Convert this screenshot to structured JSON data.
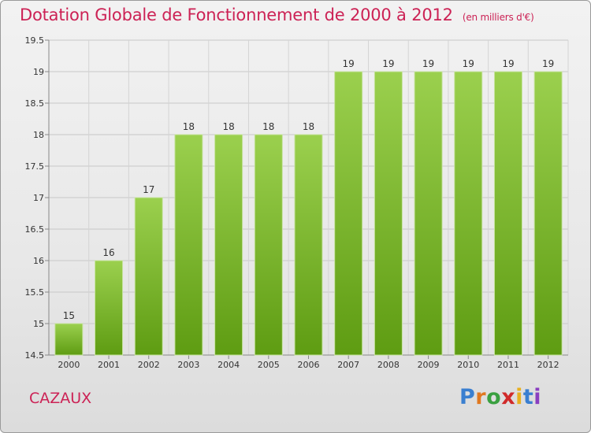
{
  "title": "Dotation Globale de Fonctionnement de 2000 à 2012",
  "subtitle": "(en milliers d'€)",
  "commune": "CAZAUX",
  "logo": "Proxiti",
  "colors": {
    "bar_top": "#9bd04e",
    "bar_bottom": "#5e9c12",
    "title": "#cc2255"
  },
  "chart_data": {
    "type": "bar",
    "title": "Dotation Globale de Fonctionnement de 2000 à 2012",
    "subtitle": "(en milliers d'€)",
    "categories": [
      "2000",
      "2001",
      "2002",
      "2003",
      "2004",
      "2005",
      "2006",
      "2007",
      "2008",
      "2009",
      "2010",
      "2011",
      "2012"
    ],
    "values": [
      15,
      16,
      17,
      18,
      18,
      18,
      18,
      19,
      19,
      19,
      19,
      19,
      19
    ],
    "data_labels": [
      "15",
      "16",
      "17",
      "18",
      "18",
      "18",
      "18",
      "19",
      "19",
      "19",
      "19",
      "19",
      "19"
    ],
    "ylim": [
      14.5,
      19.5
    ],
    "yticks": [
      "14.5",
      "15",
      "15.5",
      "16",
      "16.5",
      "17",
      "17.5",
      "18",
      "18.5",
      "19",
      "19.5"
    ],
    "grid": true,
    "xlabel": "",
    "ylabel": ""
  }
}
